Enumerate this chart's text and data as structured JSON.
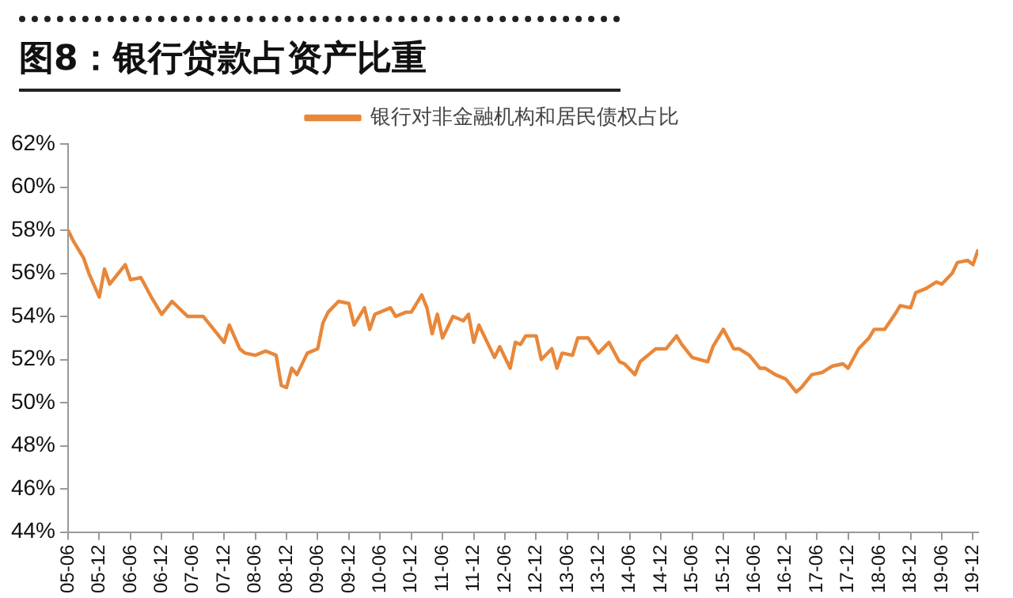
{
  "chart_data": {
    "type": "line",
    "title": "图8：银行贷款占资产比重",
    "x": [
      "2005-06",
      "2005-07",
      "2005-09",
      "2005-10",
      "2005-12",
      "2006-01",
      "2006-02",
      "2006-05",
      "2006-06",
      "2006-08",
      "2006-10",
      "2006-12",
      "2007-02",
      "2007-05",
      "2007-08",
      "2007-10",
      "2007-12",
      "2008-01",
      "2008-03",
      "2008-04",
      "2008-06",
      "2008-08",
      "2008-10",
      "2008-11",
      "2008-12",
      "2009-01",
      "2009-02",
      "2009-04",
      "2009-06",
      "2009-07",
      "2009-08",
      "2009-10",
      "2009-12",
      "2010-01",
      "2010-03",
      "2010-04",
      "2010-05",
      "2010-08",
      "2010-09",
      "2010-11",
      "2010-12",
      "2011-02",
      "2011-03",
      "2011-04",
      "2011-05",
      "2011-06",
      "2011-08",
      "2011-10",
      "2011-11",
      "2011-12",
      "2012-01",
      "2012-04",
      "2012-05",
      "2012-07",
      "2012-08",
      "2012-09",
      "2012-10",
      "2012-12",
      "2013-01",
      "2013-03",
      "2013-04",
      "2013-05",
      "2013-07",
      "2013-08",
      "2013-10",
      "2013-12",
      "2014-02",
      "2014-04",
      "2014-05",
      "2014-07",
      "2014-08",
      "2014-10",
      "2014-11",
      "2015-01",
      "2015-03",
      "2015-04",
      "2015-06",
      "2015-09",
      "2015-10",
      "2015-12",
      "2016-02",
      "2016-03",
      "2016-05",
      "2016-07",
      "2016-08",
      "2016-10",
      "2016-12",
      "2017-02",
      "2017-03",
      "2017-05",
      "2017-07",
      "2017-09",
      "2017-11",
      "2017-12",
      "2018-02",
      "2018-04",
      "2018-05",
      "2018-07",
      "2018-09",
      "2018-10",
      "2018-12",
      "2019-01",
      "2019-03",
      "2019-05",
      "2019-06",
      "2019-08",
      "2019-09",
      "2019-11",
      "2019-12",
      "2020-01"
    ],
    "series": [
      {
        "name": "银行对非金融机构和居民债权占比",
        "color": "#e8873a",
        "values": [
          58.0,
          57.5,
          56.7,
          56.0,
          54.9,
          56.2,
          55.5,
          56.4,
          55.7,
          55.8,
          54.9,
          54.1,
          54.7,
          54.0,
          54.0,
          53.4,
          52.8,
          53.6,
          52.5,
          52.3,
          52.2,
          52.4,
          52.2,
          50.8,
          50.7,
          51.6,
          51.3,
          52.3,
          52.5,
          53.7,
          54.2,
          54.7,
          54.6,
          53.6,
          54.4,
          53.4,
          54.1,
          54.4,
          54.0,
          54.2,
          54.2,
          55.0,
          54.4,
          53.2,
          54.1,
          53.0,
          54.0,
          53.8,
          54.1,
          52.8,
          53.6,
          52.1,
          52.6,
          51.6,
          52.8,
          52.7,
          53.1,
          53.1,
          52.0,
          52.5,
          51.6,
          52.3,
          52.2,
          53.0,
          53.0,
          52.3,
          52.8,
          51.9,
          51.8,
          51.3,
          51.9,
          52.3,
          52.5,
          52.5,
          53.1,
          52.7,
          52.1,
          51.9,
          52.6,
          53.4,
          52.5,
          52.5,
          52.2,
          51.6,
          51.6,
          51.3,
          51.1,
          50.5,
          50.7,
          51.3,
          51.4,
          51.7,
          51.8,
          51.6,
          52.5,
          53.0,
          53.4,
          53.4,
          54.1,
          54.5,
          54.4,
          55.1,
          55.3,
          55.6,
          55.5,
          56.0,
          56.5,
          56.6,
          56.4,
          57.1
        ]
      }
    ],
    "xlim": [
      "2005-06",
      "2020-01"
    ],
    "xticks": [
      {
        "value": "2005-06",
        "label": "05-06"
      },
      {
        "value": "2005-12",
        "label": "05-12"
      },
      {
        "value": "2006-06",
        "label": "06-06"
      },
      {
        "value": "2006-12",
        "label": "06-12"
      },
      {
        "value": "2007-06",
        "label": "07-06"
      },
      {
        "value": "2007-12",
        "label": "07-12"
      },
      {
        "value": "2008-06",
        "label": "08-06"
      },
      {
        "value": "2008-12",
        "label": "08-12"
      },
      {
        "value": "2009-06",
        "label": "09-06"
      },
      {
        "value": "2009-12",
        "label": "09-12"
      },
      {
        "value": "2010-06",
        "label": "10-06"
      },
      {
        "value": "2010-12",
        "label": "10-12"
      },
      {
        "value": "2011-06",
        "label": "11-06"
      },
      {
        "value": "2011-12",
        "label": "11-12"
      },
      {
        "value": "2012-06",
        "label": "12-06"
      },
      {
        "value": "2012-12",
        "label": "12-12"
      },
      {
        "value": "2013-06",
        "label": "13-06"
      },
      {
        "value": "2013-12",
        "label": "13-12"
      },
      {
        "value": "2014-06",
        "label": "14-06"
      },
      {
        "value": "2014-12",
        "label": "14-12"
      },
      {
        "value": "2015-06",
        "label": "15-06"
      },
      {
        "value": "2015-12",
        "label": "15-12"
      },
      {
        "value": "2016-06",
        "label": "16-06"
      },
      {
        "value": "2016-12",
        "label": "16-12"
      },
      {
        "value": "2017-06",
        "label": "17-06"
      },
      {
        "value": "2017-12",
        "label": "17-12"
      },
      {
        "value": "2018-06",
        "label": "18-06"
      },
      {
        "value": "2018-12",
        "label": "18-12"
      },
      {
        "value": "2019-06",
        "label": "19-06"
      },
      {
        "value": "2019-12",
        "label": "19-12"
      }
    ],
    "ylim": [
      44,
      62
    ],
    "yticks": [
      {
        "value": 44,
        "label": "44%"
      },
      {
        "value": 46,
        "label": "46%"
      },
      {
        "value": 48,
        "label": "48%"
      },
      {
        "value": 50,
        "label": "50%"
      },
      {
        "value": 52,
        "label": "52%"
      },
      {
        "value": 54,
        "label": "54%"
      },
      {
        "value": 56,
        "label": "56%"
      },
      {
        "value": 58,
        "label": "58%"
      },
      {
        "value": 60,
        "label": "60%"
      },
      {
        "value": 62,
        "label": "62%"
      }
    ],
    "grid": false,
    "legend": "top",
    "marker": "none",
    "line_style": "solid"
  }
}
